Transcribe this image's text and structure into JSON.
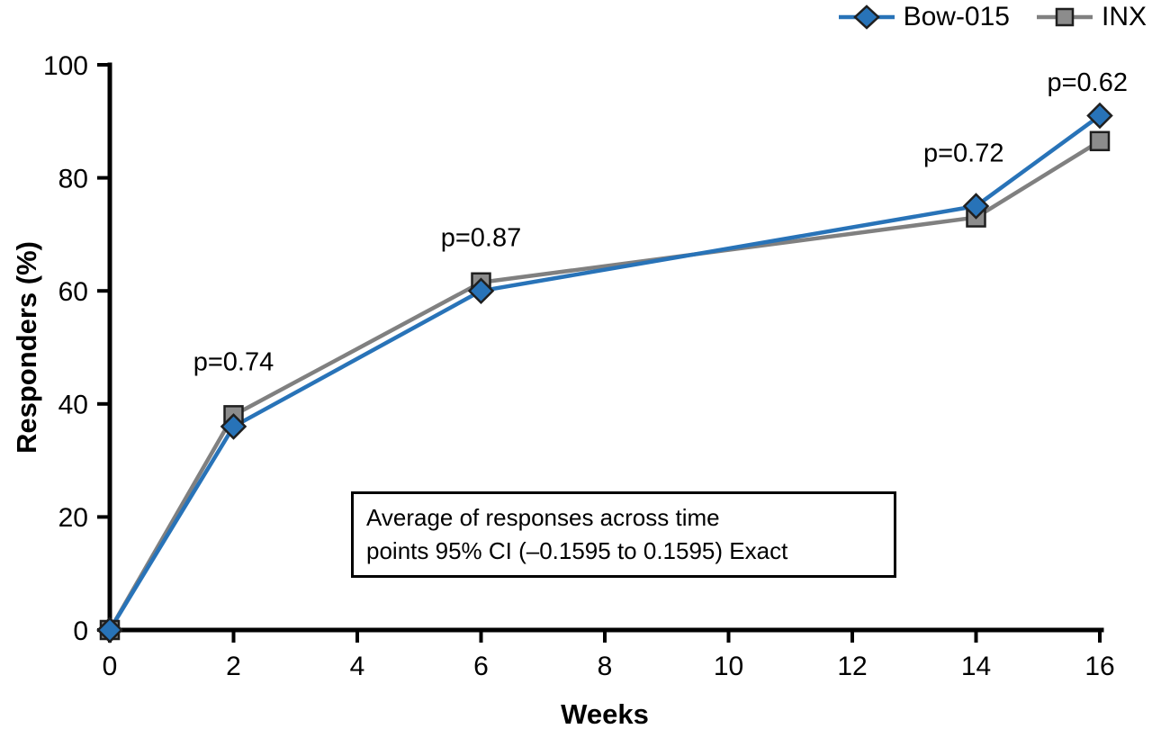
{
  "chart_data": {
    "type": "line",
    "x": [
      0,
      2,
      6,
      14,
      16
    ],
    "series": [
      {
        "name": "Bow-015",
        "values": [
          0,
          36,
          60,
          75,
          91
        ],
        "color": "#2873b8",
        "marker": "diamond",
        "marker_fill": "#2873b8"
      },
      {
        "name": "INX",
        "values": [
          0,
          38,
          61.5,
          73,
          86.5
        ],
        "color": "#808080",
        "marker": "square",
        "marker_fill": "#8c8c8c"
      }
    ],
    "title": "",
    "xlabel": "Weeks",
    "ylabel": "Responders (%)",
    "xlim": [
      0,
      16
    ],
    "ylim": [
      0,
      100
    ],
    "x_ticks": [
      0,
      2,
      4,
      6,
      8,
      10,
      12,
      14,
      16
    ],
    "y_ticks": [
      0,
      20,
      40,
      60,
      80,
      100
    ],
    "grid": false,
    "legend_position": "top-right",
    "annotations": [
      {
        "label": "p=0.74",
        "x": 2,
        "y": 47.5
      },
      {
        "label": "p=0.87",
        "x": 6,
        "y": 69.5
      },
      {
        "label": "p=0.72",
        "x": 13.8,
        "y": 84.5
      },
      {
        "label": "p=0.62",
        "x": 15.8,
        "y": 97
      }
    ],
    "note_box": {
      "lines": [
        "Average of responses across time",
        "points 95% CI (–0.1595 to 0.1595) Exact"
      ]
    }
  }
}
